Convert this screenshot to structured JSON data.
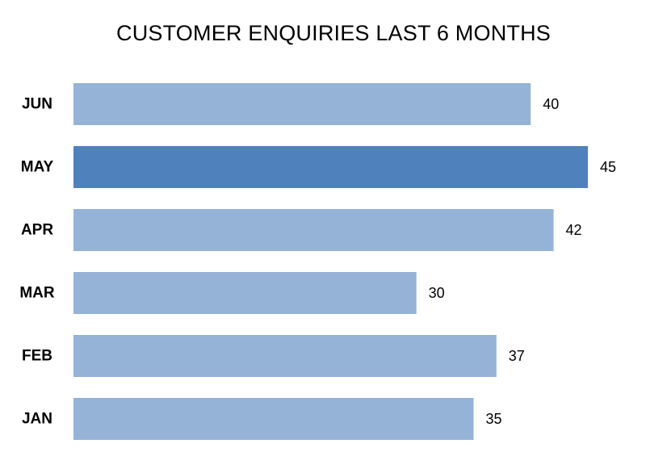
{
  "chart_data": {
    "type": "bar",
    "orientation": "horizontal",
    "title": "CUSTOMER ENQUIRIES LAST 6 MONTHS",
    "xlabel": "",
    "ylabel": "",
    "categories": [
      "JUN",
      "MAY",
      "APR",
      "MAR",
      "FEB",
      "JAN"
    ],
    "values": [
      40,
      45,
      42,
      30,
      37,
      35
    ],
    "data_labels": [
      "40",
      "45",
      "42",
      "30",
      "37",
      "35"
    ],
    "highlight_category": "MAY",
    "xlim": [
      0,
      45
    ],
    "grid": false,
    "legend": "none",
    "colors": {
      "bar": "#95B3D7",
      "bar_highlight": "#4F81BD",
      "text": "#000000"
    }
  }
}
